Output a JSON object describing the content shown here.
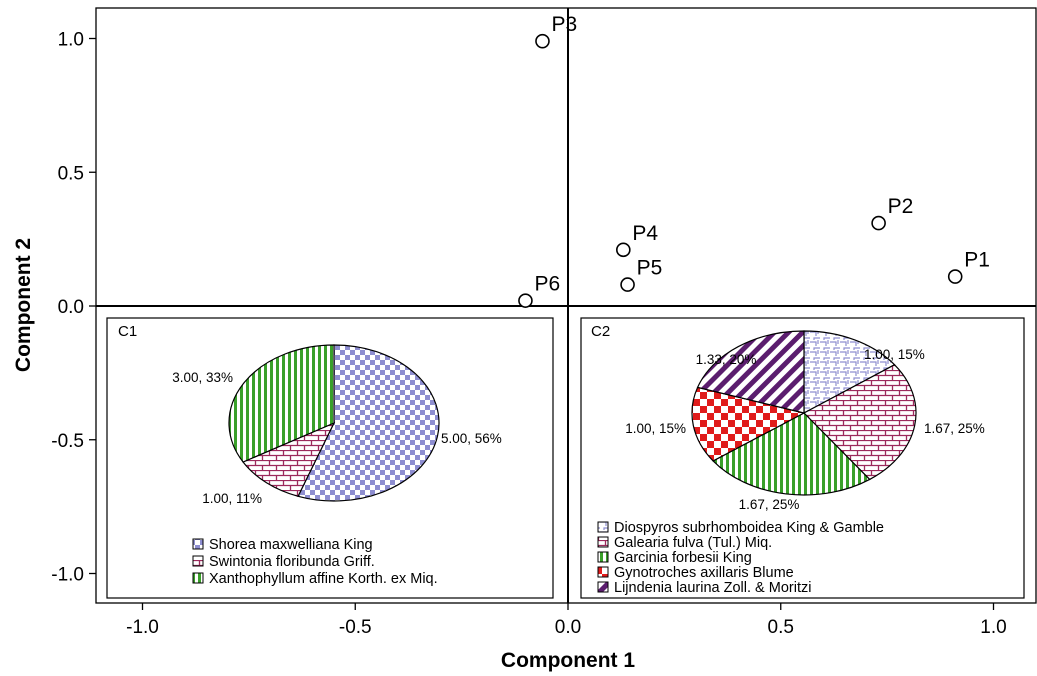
{
  "chart_data": [
    {
      "type": "scatter",
      "xlabel": "Component 1",
      "ylabel": "Component 2",
      "xlim": [
        -1.1,
        1.1
      ],
      "ylim": [
        -1.1,
        1.1
      ],
      "x_ticks": [
        "-1.0",
        "-0.5",
        "0.0",
        "0.5",
        "1.0"
      ],
      "y_ticks": [
        "1.0",
        "0.5",
        "0.0",
        "-0.5",
        "-1.0"
      ],
      "reference_lines": {
        "x": 0,
        "y": 0
      },
      "points": [
        {
          "label": "P1",
          "x": 0.91,
          "y": 0.11
        },
        {
          "label": "P2",
          "x": 0.73,
          "y": 0.31
        },
        {
          "label": "P3",
          "x": -0.06,
          "y": 0.99
        },
        {
          "label": "P4",
          "x": 0.13,
          "y": 0.21
        },
        {
          "label": "P5",
          "x": 0.14,
          "y": 0.08
        },
        {
          "label": "P6",
          "x": -0.1,
          "y": 0.02
        }
      ]
    },
    {
      "type": "pie",
      "label": "C1",
      "slices": [
        {
          "name": "Shorea maxwelliana King",
          "value": 5.0,
          "label": "5.00, 56%",
          "color": "#8e8ed0",
          "pattern": "checker"
        },
        {
          "name": "Swintonia floribunda Griff.",
          "value": 1.0,
          "label": "1.00, 11%",
          "color": "#9c2a5c",
          "pattern": "brick"
        },
        {
          "name": "Xanthophyllum affine Korth. ex Miq.",
          "value": 3.0,
          "label": "3.00, 33%",
          "color": "#3aa02a",
          "pattern": "vlines"
        }
      ]
    },
    {
      "type": "pie",
      "label": "C2",
      "slices": [
        {
          "name": "Diospyros subrhomboidea King & Gamble",
          "value": 1.0,
          "label": "1.00, 15%",
          "color": "#8e8ed0",
          "pattern": "weave"
        },
        {
          "name": "Galearia fulva (Tul.) Miq.",
          "value": 1.67,
          "label": "1.67, 25%",
          "color": "#9c2a5c",
          "pattern": "brick"
        },
        {
          "name": "Garcinia forbesii King",
          "value": 1.67,
          "label": "1.67, 25%",
          "color": "#3aa02a",
          "pattern": "vlines"
        },
        {
          "name": "Gynotroches axillaris Blume",
          "value": 1.0,
          "label": "1.00, 15%",
          "color": "#e01b1b",
          "pattern": "bigchecker"
        },
        {
          "name": "Lijndenia laurina Zoll. & Moritzi",
          "value": 1.33,
          "label": "1.33, 20%",
          "color": "#5b1d6e",
          "pattern": "diag"
        }
      ]
    }
  ]
}
